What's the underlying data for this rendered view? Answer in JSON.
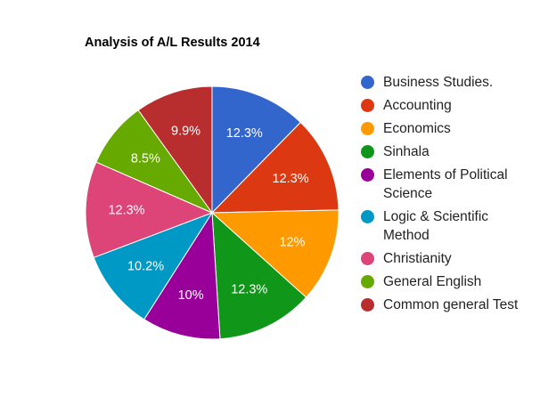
{
  "chart_data": {
    "type": "pie",
    "title": "Analysis of A/L Results 2014",
    "legend_position": "right",
    "start_angle_deg": 0,
    "direction": "clockwise",
    "slices": [
      {
        "name": "Business Studies.",
        "value": 12.3,
        "label": "12.3%",
        "color": "#3366cc"
      },
      {
        "name": "Accounting",
        "value": 12.3,
        "label": "12.3%",
        "color": "#dc3912"
      },
      {
        "name": "Economics",
        "value": 12,
        "label": "12%",
        "color": "#ff9900"
      },
      {
        "name": "Sinhala",
        "value": 12.3,
        "label": "12.3%",
        "color": "#109618"
      },
      {
        "name": "Elements of Political Science",
        "value": 10,
        "label": "10%",
        "color": "#990099"
      },
      {
        "name": "Logic & Scientific Method",
        "value": 10.2,
        "label": "10.2%",
        "color": "#0099c6"
      },
      {
        "name": "Christianity",
        "value": 12.3,
        "label": "12.3%",
        "color": "#dd4477"
      },
      {
        "name": "General English",
        "value": 8.5,
        "label": "8.5%",
        "color": "#66aa00"
      },
      {
        "name": "Common general Test",
        "value": 9.9,
        "label": "9.9%",
        "color": "#b82e2e"
      }
    ]
  }
}
